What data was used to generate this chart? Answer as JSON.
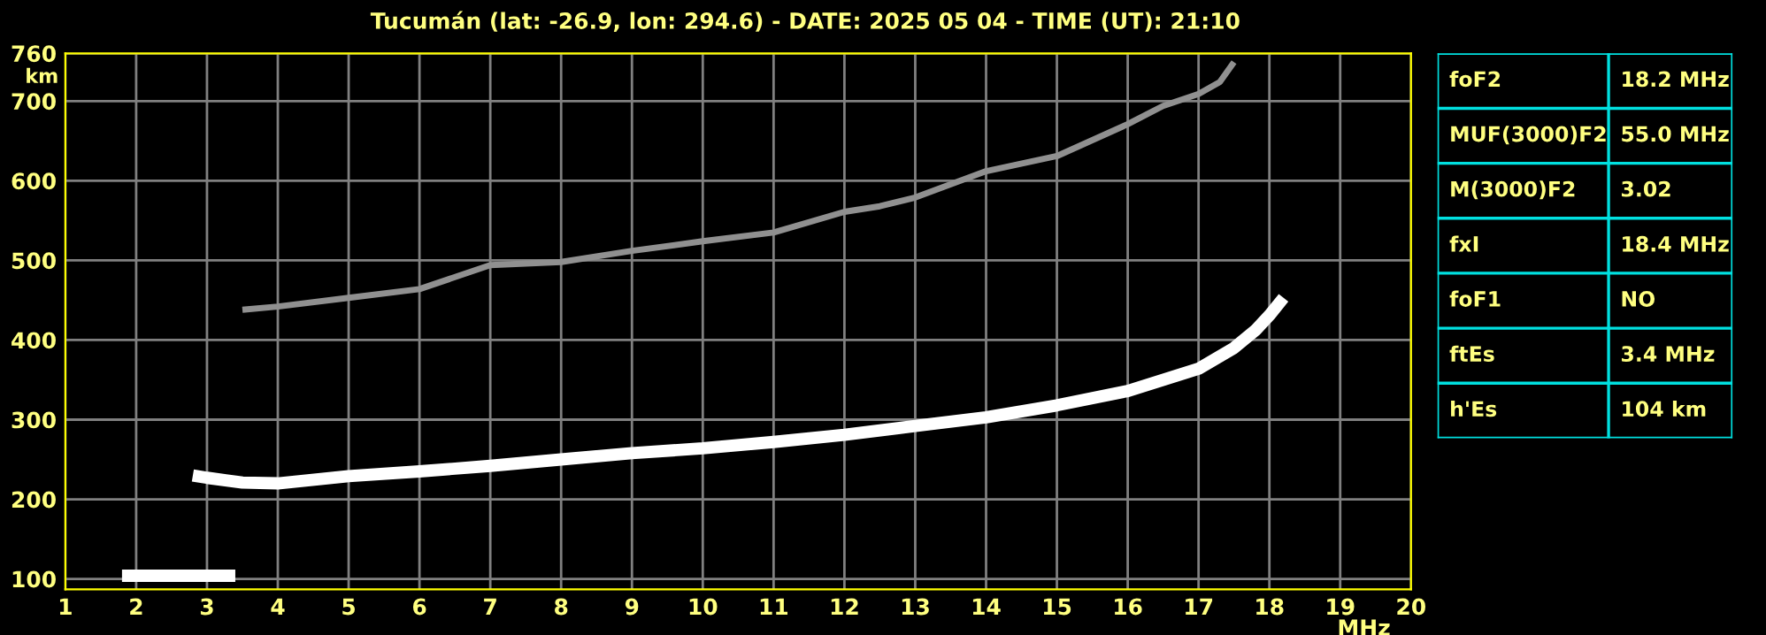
{
  "chart_data": [
    {
      "type": "line",
      "title": "Tucumán (lat: -26.9, lon: 294.6) - DATE: 2025 05 04 - TIME (UT): 21:10",
      "xlabel": "MHz",
      "ylabel": "km",
      "xlim": [
        1,
        20
      ],
      "ylim": [
        87,
        760
      ],
      "xticks": [
        1,
        2,
        3,
        4,
        5,
        6,
        7,
        8,
        9,
        10,
        11,
        12,
        13,
        14,
        15,
        16,
        17,
        18,
        19,
        20
      ],
      "yticks": [
        100,
        200,
        300,
        400,
        500,
        600,
        700,
        760
      ],
      "grid": true,
      "marker": "none",
      "line_style": "solid",
      "series": [
        {
          "color": "#ffffff",
          "x": [
            1.8,
            3.4
          ],
          "values": [
            104,
            104
          ]
        },
        {
          "color": "#ffffff",
          "x": [
            2.8,
            3,
            3.5,
            4,
            5,
            6,
            7,
            8,
            9,
            10,
            11,
            12,
            13,
            14,
            15,
            16,
            17,
            17.5,
            17.8,
            18.0,
            18.2
          ],
          "values": [
            230,
            227,
            221,
            220,
            229,
            235,
            242,
            250,
            258,
            264,
            272,
            281,
            292,
            303,
            318,
            336,
            364,
            390,
            412,
            431,
            453
          ]
        },
        {
          "color": "#909090",
          "x": [
            3.5,
            4,
            5,
            6,
            7,
            8,
            9,
            10,
            11,
            12,
            12.5,
            13,
            14,
            15,
            16,
            16.5,
            17,
            17.3,
            17.5
          ],
          "values": [
            438,
            442,
            453,
            464,
            494,
            498,
            512,
            524,
            535,
            561,
            568,
            579,
            612,
            631,
            671,
            694,
            709,
            724,
            749
          ]
        }
      ]
    },
    {
      "type": "other",
      "annotations": [
        "foF2",
        "18.2 MHz",
        "MUF(3000)F2",
        "55.0 MHz",
        "M(3000)F2",
        "3.02",
        "fxI",
        "18.4 MHz",
        "foF1",
        "NO",
        "ftEs",
        "3.4 MHz",
        "h'Es",
        "104 km"
      ]
    }
  ]
}
